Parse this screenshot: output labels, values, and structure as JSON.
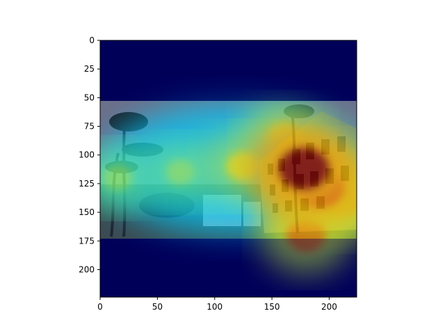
{
  "chart_data": {
    "type": "heatmap",
    "title": "",
    "xlabel": "",
    "ylabel": "",
    "xlim": [
      0,
      224
    ],
    "ylim": [
      224,
      0
    ],
    "x_ticks": [
      0,
      50,
      100,
      150,
      200
    ],
    "y_ticks": [
      0,
      25,
      50,
      75,
      100,
      125,
      150,
      175,
      200
    ],
    "image_band_rows": [
      53,
      173
    ],
    "colormap": "jet",
    "overlay": "attention heatmap over grayscale photo of a street with palm trees and an arched building",
    "hotspots": [
      {
        "x": 178,
        "y": 112,
        "intensity": 1.0
      },
      {
        "x": 192,
        "y": 128,
        "intensity": 0.85
      },
      {
        "x": 180,
        "y": 170,
        "intensity": 0.65
      },
      {
        "x": 210,
        "y": 140,
        "intensity": 0.6
      },
      {
        "x": 160,
        "y": 85,
        "intensity": 0.45
      },
      {
        "x": 125,
        "y": 110,
        "intensity": 0.45
      },
      {
        "x": 70,
        "y": 115,
        "intensity": 0.3
      },
      {
        "x": 15,
        "y": 120,
        "intensity": 0.3
      }
    ],
    "grid": false,
    "legend": "none"
  },
  "colors": {
    "cmap_low": "#00005a",
    "cmap_mid": "#00d0d0",
    "cmap_high": "#ff0000"
  }
}
